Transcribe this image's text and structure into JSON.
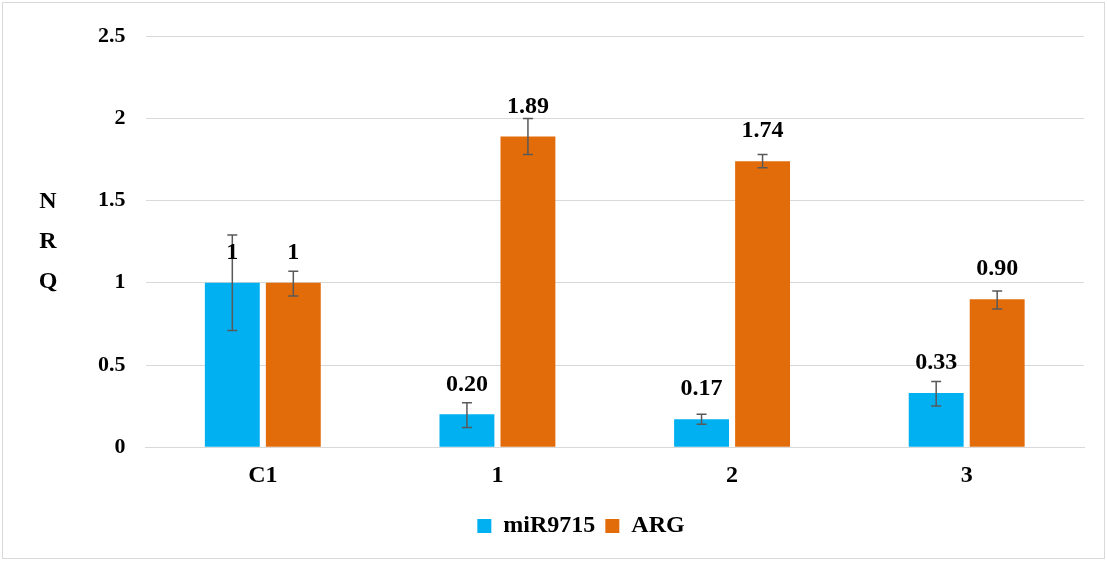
{
  "chart_data": {
    "type": "bar",
    "ylabel": "NRQ",
    "categories": [
      "C1",
      "1",
      "2",
      "3"
    ],
    "series": [
      {
        "name": "miR9715",
        "color": "#00b0f0",
        "values": [
          1,
          0.2,
          0.17,
          0.33
        ],
        "value_labels": [
          "1",
          "0.20",
          "0.17",
          "0.33"
        ],
        "errors": [
          [
            0.71,
            1.29
          ],
          [
            0.12,
            0.27
          ],
          [
            0.14,
            0.2
          ],
          [
            0.25,
            0.4
          ]
        ]
      },
      {
        "name": "ARG",
        "color": "#e36c0a",
        "values": [
          1,
          1.89,
          1.74,
          0.9
        ],
        "value_labels": [
          "1",
          "1.89",
          "1.74",
          "0.90"
        ],
        "errors": [
          [
            0.92,
            1.07
          ],
          [
            1.78,
            2.0
          ],
          [
            1.7,
            1.78
          ],
          [
            0.84,
            0.95
          ]
        ]
      }
    ],
    "ylim": [
      0,
      2.5
    ],
    "yticks": [
      0,
      0.5,
      1,
      1.5,
      2,
      2.5
    ],
    "grid": "y",
    "legend": "bottom"
  }
}
